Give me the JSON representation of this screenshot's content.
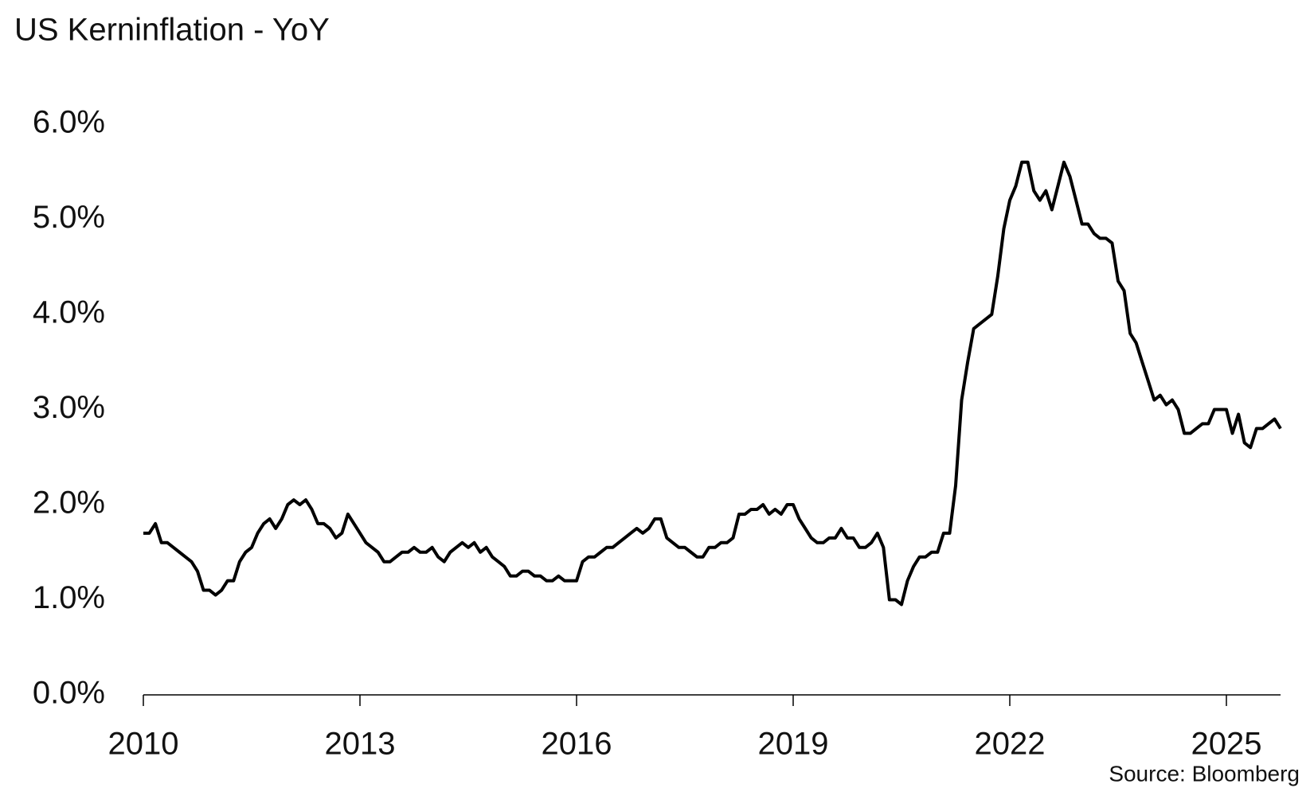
{
  "chart_data": {
    "type": "line",
    "title": "US Kerninflation - YoY",
    "source": "Source: Bloomberg",
    "x": [
      2010,
      2010.083,
      2010.167,
      2010.25,
      2010.333,
      2010.417,
      2010.5,
      2010.583,
      2010.667,
      2010.75,
      2010.833,
      2010.917,
      2011,
      2011.083,
      2011.167,
      2011.25,
      2011.333,
      2011.417,
      2011.5,
      2011.583,
      2011.667,
      2011.75,
      2011.833,
      2011.917,
      2012,
      2012.083,
      2012.167,
      2012.25,
      2012.333,
      2012.417,
      2012.5,
      2012.583,
      2012.667,
      2012.75,
      2012.833,
      2012.917,
      2013,
      2013.083,
      2013.167,
      2013.25,
      2013.333,
      2013.417,
      2013.5,
      2013.583,
      2013.667,
      2013.75,
      2013.833,
      2013.917,
      2014,
      2014.083,
      2014.167,
      2014.25,
      2014.333,
      2014.417,
      2014.5,
      2014.583,
      2014.667,
      2014.75,
      2014.833,
      2014.917,
      2015,
      2015.083,
      2015.167,
      2015.25,
      2015.333,
      2015.417,
      2015.5,
      2015.583,
      2015.667,
      2015.75,
      2015.833,
      2015.917,
      2016,
      2016.083,
      2016.167,
      2016.25,
      2016.333,
      2016.417,
      2016.5,
      2016.583,
      2016.667,
      2016.75,
      2016.833,
      2016.917,
      2017,
      2017.083,
      2017.167,
      2017.25,
      2017.333,
      2017.417,
      2017.5,
      2017.583,
      2017.667,
      2017.75,
      2017.833,
      2017.917,
      2018,
      2018.083,
      2018.167,
      2018.25,
      2018.333,
      2018.417,
      2018.5,
      2018.583,
      2018.667,
      2018.75,
      2018.833,
      2018.917,
      2019,
      2019.083,
      2019.167,
      2019.25,
      2019.333,
      2019.417,
      2019.5,
      2019.583,
      2019.667,
      2019.75,
      2019.833,
      2019.917,
      2020,
      2020.083,
      2020.167,
      2020.25,
      2020.333,
      2020.417,
      2020.5,
      2020.583,
      2020.667,
      2020.75,
      2020.833,
      2020.917,
      2021,
      2021.083,
      2021.167,
      2021.25,
      2021.333,
      2021.417,
      2021.5,
      2021.583,
      2021.667,
      2021.75,
      2021.833,
      2021.917,
      2022,
      2022.083,
      2022.167,
      2022.25,
      2022.333,
      2022.417,
      2022.5,
      2022.583,
      2022.667,
      2022.75,
      2022.833,
      2022.917,
      2023,
      2023.083,
      2023.167,
      2023.25,
      2023.333,
      2023.417,
      2023.5,
      2023.583,
      2023.667,
      2023.75,
      2023.833,
      2023.917,
      2024,
      2024.083,
      2024.167,
      2024.25,
      2024.333,
      2024.417,
      2024.5,
      2024.583,
      2024.667,
      2024.75,
      2024.833,
      2024.917,
      2025,
      2025.083,
      2025.167,
      2025.25,
      2025.333,
      2025.417,
      2025.5,
      2025.583,
      2025.667,
      2025.75
    ],
    "series": [
      {
        "color": "#000000",
        "values": [
          1.7,
          1.7,
          1.8,
          1.6,
          1.6,
          1.55,
          1.5,
          1.45,
          1.4,
          1.3,
          1.1,
          1.1,
          1.05,
          1.1,
          1.2,
          1.2,
          1.4,
          1.5,
          1.55,
          1.7,
          1.8,
          1.85,
          1.75,
          1.85,
          2.0,
          2.05,
          2.0,
          2.05,
          1.95,
          1.8,
          1.8,
          1.75,
          1.65,
          1.7,
          1.9,
          1.8,
          1.7,
          1.6,
          1.55,
          1.5,
          1.4,
          1.4,
          1.45,
          1.5,
          1.5,
          1.55,
          1.5,
          1.5,
          1.55,
          1.45,
          1.4,
          1.5,
          1.55,
          1.6,
          1.55,
          1.6,
          1.5,
          1.55,
          1.45,
          1.4,
          1.35,
          1.25,
          1.25,
          1.3,
          1.3,
          1.25,
          1.25,
          1.2,
          1.2,
          1.25,
          1.2,
          1.2,
          1.2,
          1.4,
          1.45,
          1.45,
          1.5,
          1.55,
          1.55,
          1.6,
          1.65,
          1.7,
          1.75,
          1.7,
          1.75,
          1.85,
          1.85,
          1.65,
          1.6,
          1.55,
          1.55,
          1.5,
          1.45,
          1.45,
          1.55,
          1.55,
          1.6,
          1.6,
          1.65,
          1.9,
          1.9,
          1.95,
          1.95,
          2.0,
          1.9,
          1.95,
          1.9,
          2.0,
          2.0,
          1.85,
          1.75,
          1.65,
          1.6,
          1.6,
          1.65,
          1.65,
          1.75,
          1.65,
          1.65,
          1.55,
          1.55,
          1.6,
          1.7,
          1.55,
          1.0,
          1.0,
          0.95,
          1.2,
          1.35,
          1.45,
          1.45,
          1.5,
          1.5,
          1.7,
          1.7,
          2.2,
          3.1,
          3.5,
          3.85,
          3.9,
          3.95,
          4.0,
          4.4,
          4.9,
          5.2,
          5.35,
          5.6,
          5.6,
          5.3,
          5.2,
          5.3,
          5.1,
          5.35,
          5.6,
          5.45,
          5.2,
          4.95,
          4.95,
          4.85,
          4.8,
          4.8,
          4.75,
          4.35,
          4.25,
          3.8,
          3.7,
          3.5,
          3.3,
          3.1,
          3.15,
          3.05,
          3.1,
          3.0,
          2.75,
          2.75,
          2.8,
          2.85,
          2.85,
          3.0,
          3.0,
          3.0,
          2.75,
          2.95,
          2.65,
          2.6,
          2.8,
          2.8,
          2.85,
          2.9,
          2.8
        ]
      }
    ],
    "xlim": [
      2010,
      2025.75
    ],
    "xticks": [
      2010,
      2013,
      2016,
      2019,
      2022,
      2025
    ],
    "ylim": [
      0,
      6
    ],
    "yticks": [
      {
        "value": 0,
        "label": "0.0%"
      },
      {
        "value": 1,
        "label": "1.0%"
      },
      {
        "value": 2,
        "label": "2.0%"
      },
      {
        "value": 3,
        "label": "3.0%"
      },
      {
        "value": 4,
        "label": "4.0%"
      },
      {
        "value": 5,
        "label": "5.0%"
      },
      {
        "value": 6,
        "label": "6.0%"
      }
    ],
    "grid": false
  }
}
